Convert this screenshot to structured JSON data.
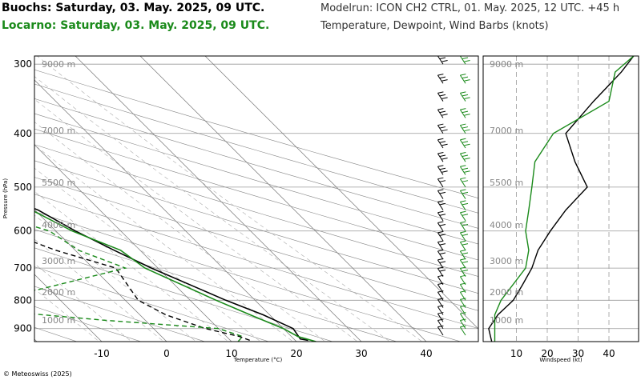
{
  "header": {
    "station1": "Buochs: Saturday, 03. May. 2025, 09 UTC.",
    "station2": "Locarno: Saturday, 03. May. 2025, 09 UTC.",
    "model": "Modelrun: ICON CH2 CTRL, 01. May. 2025, 12 UTC. +45 h",
    "description": "Temperature, Dewpoint, Wind Barbs (knots)"
  },
  "footer": {
    "copyright": "© Meteoswiss (2025)"
  },
  "colors": {
    "station1": "#000000",
    "station2": "#1a8a1a",
    "grid": "#aaaaaa"
  },
  "chart_data": [
    {
      "type": "line",
      "chart": "skew-t",
      "xlabel": "Temperature (°C)",
      "ylabel": "Pressure (hPa)",
      "xlim": [
        -20,
        47
      ],
      "ylim": [
        950,
        290
      ],
      "x_ticks": [
        -10,
        0,
        10,
        20,
        30,
        40
      ],
      "pressure_ticks": [
        300,
        400,
        500,
        600,
        700,
        800,
        900
      ],
      "altitude_labels": [
        "9000 m",
        "7000 m",
        "5500 m",
        "4000 m",
        "3000 m",
        "2000 m",
        "1000 m"
      ],
      "series": [
        {
          "name": "Buochs",
          "station_key": "station1",
          "temperature": [
            [
              945,
              22.0
            ],
            [
              940,
              21.0
            ],
            [
              900,
              21.5
            ],
            [
              850,
              19.0
            ],
            [
              800,
              15.5
            ],
            [
              700,
              9.0
            ],
            [
              650,
              6.0
            ],
            [
              600,
              3.0
            ],
            [
              550,
              0.5
            ],
            [
              500,
              -4.5
            ],
            [
              450,
              -9.5
            ],
            [
              400,
              -15.0
            ],
            [
              350,
              -20.5
            ],
            [
              300,
              -27.0
            ]
          ],
          "dewpoint": [
            [
              945,
              13.0
            ],
            [
              930,
              12.0
            ],
            [
              900,
              8.0
            ],
            [
              850,
              4.0
            ],
            [
              800,
              2.0
            ],
            [
              700,
              3.5
            ],
            [
              650,
              -3.0
            ],
            [
              600,
              -8.0
            ],
            [
              550,
              -8.5
            ],
            [
              500,
              -30.0
            ],
            [
              450,
              -24.0
            ],
            [
              400,
              -23.0
            ],
            [
              350,
              -32.0
            ],
            [
              300,
              -52.0
            ]
          ]
        },
        {
          "name": "Locarno",
          "station_key": "station2",
          "temperature": [
            [
              950,
              23.0
            ],
            [
              930,
              21.0
            ],
            [
              900,
              20.0
            ],
            [
              850,
              17.0
            ],
            [
              800,
              14.0
            ],
            [
              700,
              8.0
            ],
            [
              650,
              7.0
            ],
            [
              600,
              2.5
            ],
            [
              550,
              -0.5
            ],
            [
              500,
              -4.5
            ],
            [
              450,
              -10.0
            ],
            [
              400,
              -15.5
            ],
            [
              350,
              -21.0
            ],
            [
              300,
              -27.5
            ]
          ],
          "dewpoint": [
            [
              950,
              11.0
            ],
            [
              930,
              12.5
            ],
            [
              900,
              10.0
            ],
            [
              870,
              -6.0
            ],
            [
              830,
              -24.0
            ],
            [
              800,
              -20.0
            ],
            [
              700,
              5.0
            ],
            [
              650,
              0.5
            ],
            [
              600,
              -1.0
            ],
            [
              550,
              -8.5
            ],
            [
              500,
              -13.0
            ],
            [
              450,
              -25.0
            ],
            [
              400,
              -18.5
            ],
            [
              350,
              -26.0
            ],
            [
              300,
              -41.0
            ]
          ]
        }
      ]
    },
    {
      "type": "line",
      "chart": "wind-profile",
      "xlabel": "Windspeed (kt)",
      "xlim": [
        0,
        47
      ],
      "x_ticks": [
        10,
        20,
        30,
        40
      ],
      "altitude_labels": [
        "9000 m",
        "7000 m",
        "5500 m",
        "4000 m",
        "3000 m",
        "2000 m",
        "1000 m"
      ],
      "series": [
        {
          "name": "Buochs",
          "station_key": "station1",
          "points": [
            [
              950,
              2
            ],
            [
              900,
              1
            ],
            [
              850,
              4
            ],
            [
              800,
              9
            ],
            [
              750,
              12
            ],
            [
              700,
              15
            ],
            [
              650,
              17
            ],
            [
              600,
              21
            ],
            [
              550,
              26
            ],
            [
              500,
              33
            ],
            [
              450,
              29
            ],
            [
              400,
              26
            ],
            [
              350,
              35
            ],
            [
              310,
              44
            ],
            [
              290,
              48
            ]
          ]
        },
        {
          "name": "Locarno",
          "station_key": "station2",
          "points": [
            [
              950,
              3
            ],
            [
              900,
              3
            ],
            [
              850,
              3
            ],
            [
              800,
              5
            ],
            [
              700,
              13
            ],
            [
              650,
              14
            ],
            [
              600,
              13
            ],
            [
              550,
              14
            ],
            [
              500,
              15
            ],
            [
              450,
              16
            ],
            [
              400,
              22
            ],
            [
              350,
              40
            ],
            [
              310,
              42
            ],
            [
              290,
              48
            ]
          ]
        }
      ]
    }
  ]
}
